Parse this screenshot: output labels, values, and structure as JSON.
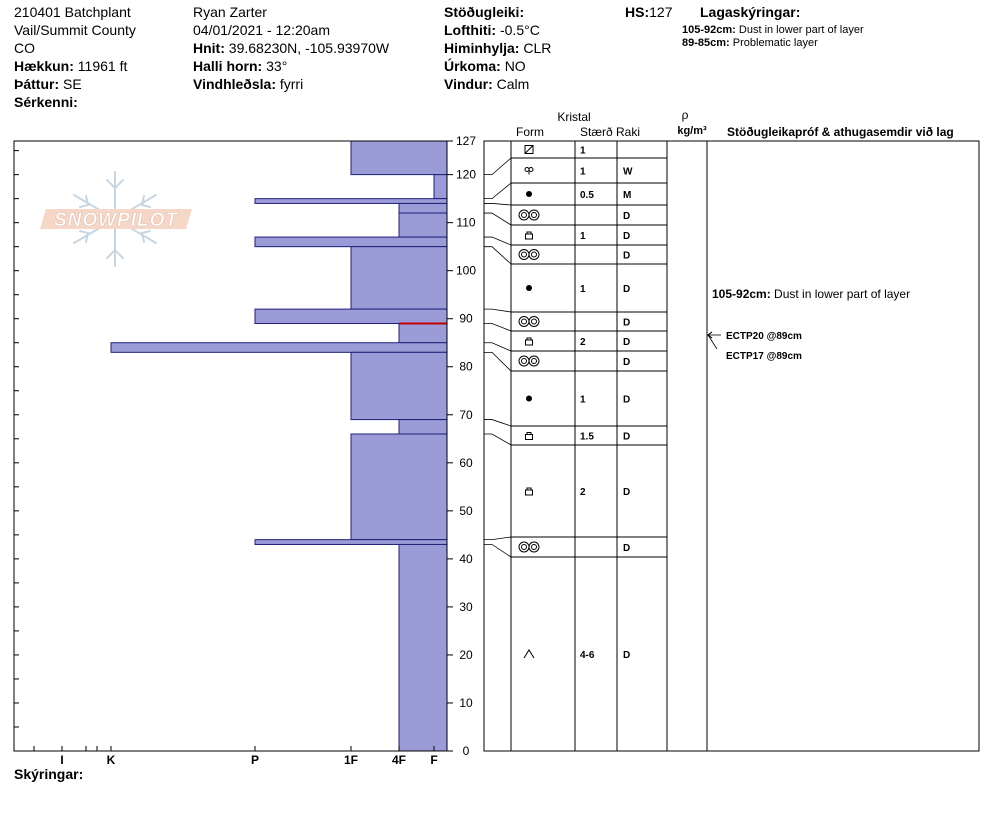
{
  "header": {
    "site": "210401 Batchplant",
    "region": "Vail/Summit County",
    "state": "CO",
    "elevation_label": "Hækkun:",
    "elevation_value": "11961 ft",
    "aspect_label": "Þáttur:",
    "aspect_value": "SE",
    "features_label": "Sérkenni:",
    "observer": "Ryan Zarter",
    "datetime": "04/01/2021 - 12:20am",
    "coords_label": "Hnit:",
    "coords_value": "39.68230N, -105.93970W",
    "slope_label": "Halli horn:",
    "slope_value": "33°",
    "wind_loading_label": "Vindhleðsla:",
    "wind_loading_value": "fyrri",
    "stability_label": "Stöðugleiki:",
    "air_temp_label": "Lofthiti:",
    "air_temp_value": "-0.5°C",
    "sky_label": "Himinhylja:",
    "sky_value": "CLR",
    "precip_label": "Úrkoma:",
    "precip_value": "NO",
    "wind_label": "Vindur:",
    "wind_value": "Calm",
    "hs_label": "HS:",
    "hs_value": "127",
    "layer_notes_title": "Lagaskýringar:",
    "layer_notes": [
      {
        "range": "105-92cm:",
        "text": "Dust in lower part of layer"
      },
      {
        "range": "89-85cm:",
        "text": "Problematic layer"
      }
    ],
    "notes_label": "Skýringar:"
  },
  "watermark": "SNOWPILOT",
  "columns": {
    "crystal": "Kristal",
    "form": "Form",
    "size": "Stærð",
    "moisture": "Raki",
    "rho": "ρ",
    "density_unit": "kg/m³",
    "tests": "Stöðugleikapróf & athugasemdir við lag"
  },
  "colors": {
    "layer_fill": "#9b9bd8",
    "layer_stroke": "#1f1f7a",
    "problem_line": "#c00000"
  },
  "chart_data": {
    "type": "bar",
    "orientation": "horizontal",
    "ylabel": "",
    "ylim": [
      0,
      130
    ],
    "yticks": [
      0,
      10,
      20,
      30,
      40,
      50,
      60,
      70,
      80,
      90,
      100,
      110,
      120,
      127
    ],
    "hardness_scale": [
      "F",
      "4F",
      "1F",
      "P",
      "K",
      "I"
    ],
    "hardness_axis_labels": [
      "I",
      "K",
      "P",
      "1F",
      "4F",
      "F"
    ],
    "hardness_positions": {
      "F": 0.5,
      "4F": 1,
      "1F": 2,
      "P": 3,
      "K": 4,
      "I": 4
    },
    "layers": [
      {
        "top": 127,
        "bottom": 120,
        "hardness": "1F",
        "hv": 2,
        "form": "decomposing",
        "size": "1",
        "moisture": ""
      },
      {
        "top": 120,
        "bottom": 115,
        "hardness": "F",
        "hv": 0.25,
        "form": "graupel",
        "size": "1",
        "moisture": "W"
      },
      {
        "top": 115,
        "bottom": 114,
        "hardness": "P",
        "hv": 4,
        "form": "rounded",
        "size": "0.5",
        "moisture": "M"
      },
      {
        "top": 114,
        "bottom": 112,
        "hardness": "4F",
        "hv": 1,
        "form": "melt-forms",
        "size": "",
        "moisture": "D"
      },
      {
        "top": 112,
        "bottom": 107,
        "hardness": "4F",
        "hv": 1,
        "form": "faceted",
        "size": "1",
        "moisture": "D"
      },
      {
        "top": 107,
        "bottom": 105,
        "hardness": "P",
        "hv": 4,
        "form": "melt-forms",
        "size": "",
        "moisture": "D"
      },
      {
        "top": 105,
        "bottom": 92,
        "hardness": "1F",
        "hv": 2,
        "form": "rounded",
        "size": "1",
        "moisture": "D"
      },
      {
        "top": 92,
        "bottom": 89,
        "hardness": "P",
        "hv": 4,
        "form": "melt-forms",
        "size": "",
        "moisture": "D"
      },
      {
        "top": 89,
        "bottom": 85,
        "hardness": "4F",
        "hv": 1,
        "form": "faceted",
        "size": "2",
        "moisture": "D"
      },
      {
        "top": 85,
        "bottom": 83,
        "hardness": "K",
        "hv": 7,
        "form": "melt-forms",
        "size": "",
        "moisture": "D"
      },
      {
        "top": 83,
        "bottom": 69,
        "hardness": "1F",
        "hv": 2,
        "form": "rounded",
        "size": "1",
        "moisture": "D"
      },
      {
        "top": 69,
        "bottom": 66,
        "hardness": "4F",
        "hv": 1,
        "form": "faceted",
        "size": "1.5",
        "moisture": "D"
      },
      {
        "top": 66,
        "bottom": 44,
        "hardness": "1F",
        "hv": 2,
        "form": "faceted",
        "size": "2",
        "moisture": "D"
      },
      {
        "top": 44,
        "bottom": 43,
        "hardness": "P",
        "hv": 4,
        "form": "melt-forms",
        "size": "",
        "moisture": "D"
      },
      {
        "top": 43,
        "bottom": 0,
        "hardness": "4F",
        "hv": 1,
        "form": "depth-hoar",
        "size": "4-6",
        "moisture": "D"
      }
    ],
    "problem_depth": 89,
    "comments": [
      {
        "depth": 98.5,
        "text": "105-92cm:",
        "detail": "Dust in lower part of layer"
      }
    ],
    "tests": [
      {
        "depth": 89,
        "text": "ECTP20 @89cm"
      },
      {
        "depth": 89,
        "text": "ECTP17 @89cm"
      }
    ]
  }
}
